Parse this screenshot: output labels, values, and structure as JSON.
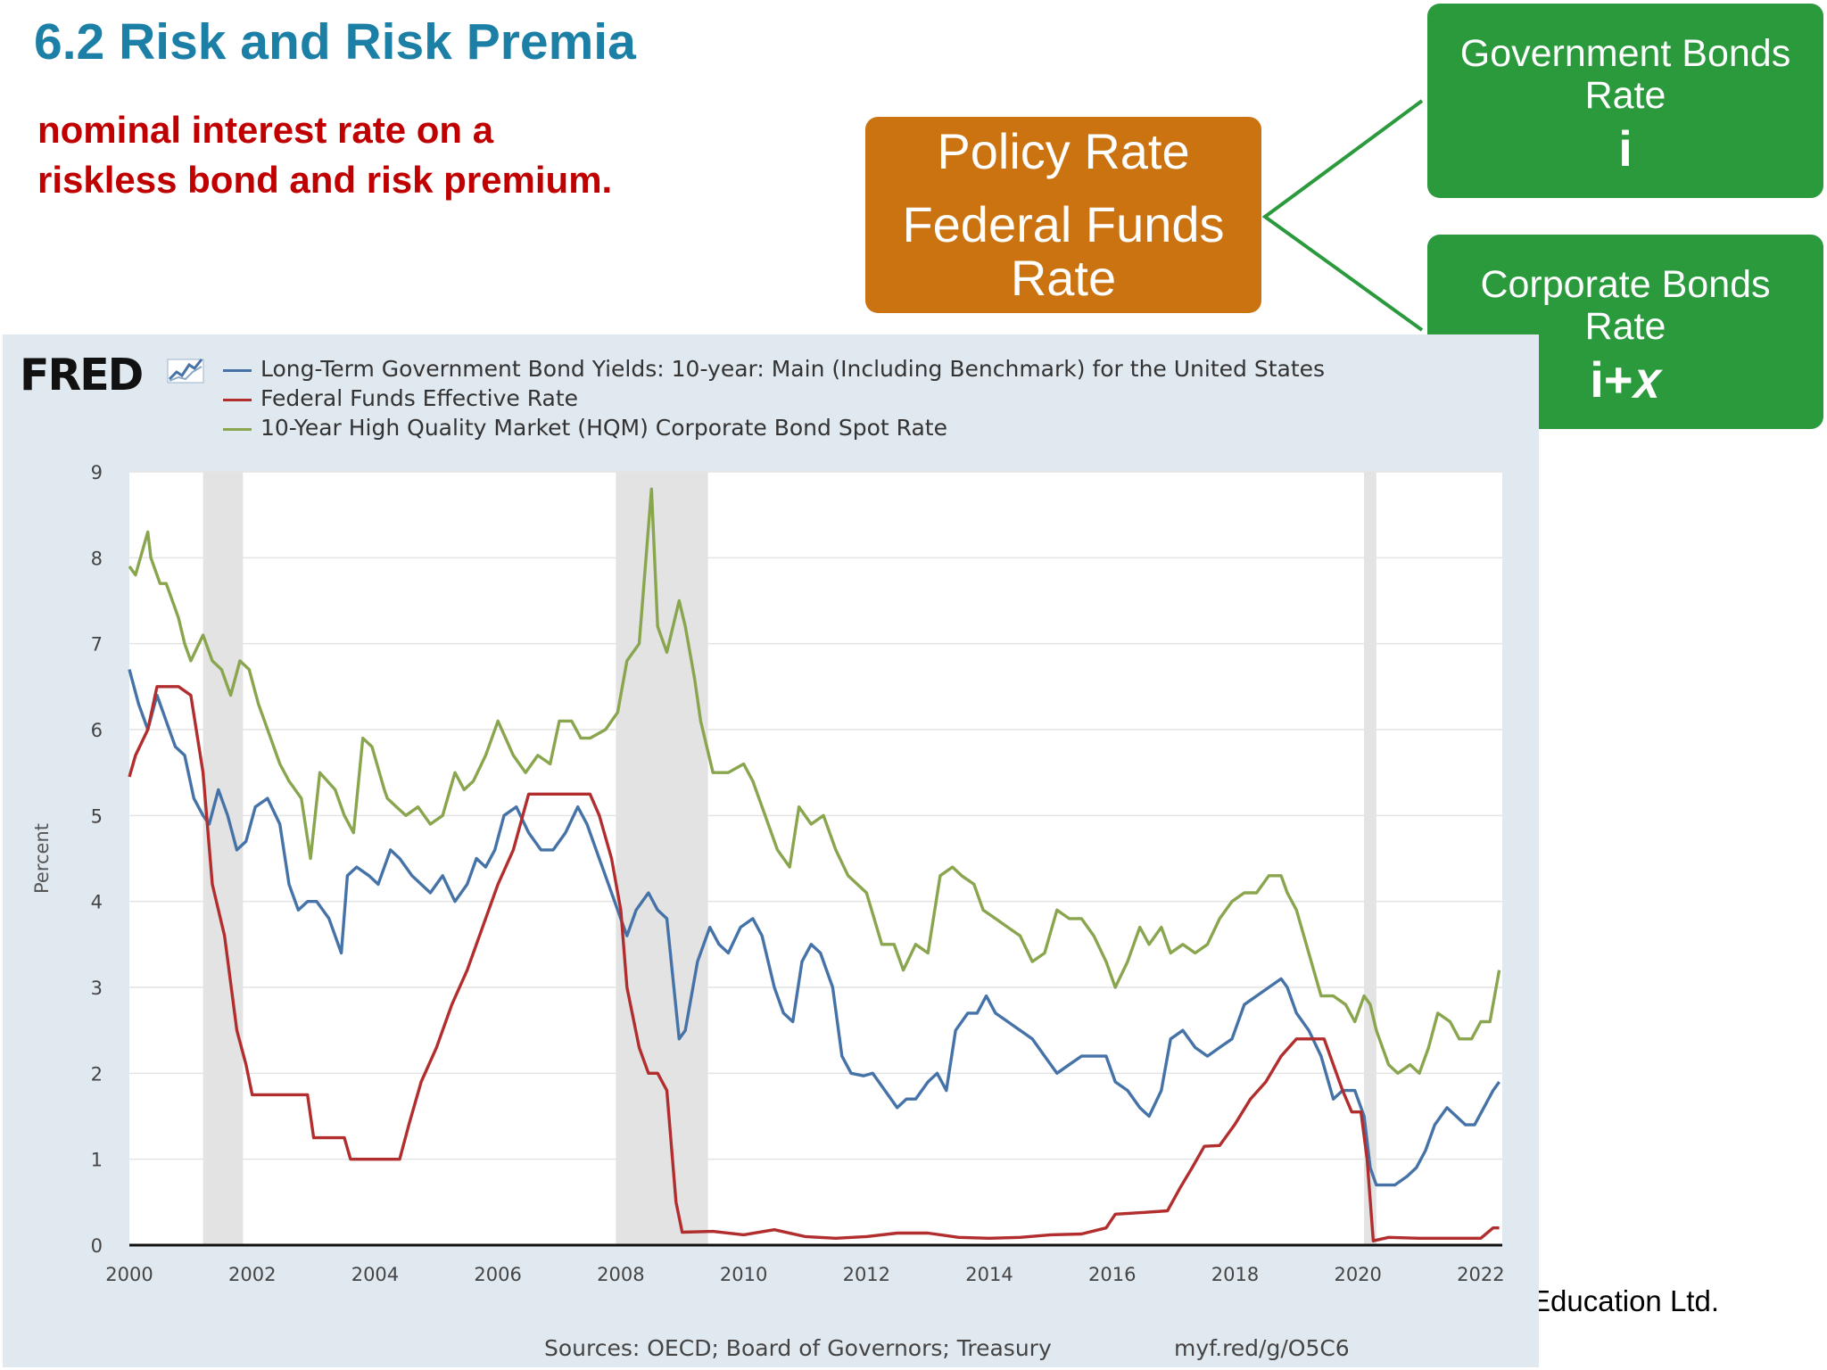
{
  "slide": {
    "title": "6.2 Risk and Risk Premia",
    "subtitle_line1": "nominal interest rate on a",
    "subtitle_line2": "riskless bond and risk premium.",
    "copyright_fragment": "Education Ltd."
  },
  "boxes": {
    "policy": {
      "line1": "Policy Rate",
      "line2": "Federal Funds",
      "line3": "Rate",
      "color": "#cc7311"
    },
    "government": {
      "line1": "Government Bonds",
      "line2": "Rate",
      "symbol": "i",
      "color": "#2a9a3d"
    },
    "corporate": {
      "line1": "Corporate Bonds",
      "line2": "Rate",
      "symbol": "i+𝑥",
      "color": "#2a9a3d"
    }
  },
  "fred": {
    "logo": "FRED",
    "sources": "Sources: OECD; Board of Governors; Treasury",
    "url": "myf.red/g/O5C6"
  },
  "chart_data": {
    "type": "line",
    "ylabel": "Percent",
    "xlabel": "",
    "xlim": [
      2000,
      2022.35
    ],
    "ylim": [
      0,
      9
    ],
    "x_ticks": [
      2000,
      2002,
      2004,
      2006,
      2008,
      2010,
      2012,
      2014,
      2016,
      2018,
      2020,
      2022
    ],
    "y_ticks": [
      0,
      1,
      2,
      3,
      4,
      5,
      6,
      7,
      8,
      9
    ],
    "grid": true,
    "legend_position": "top-left",
    "recessions": [
      [
        2001.2,
        2001.85
      ],
      [
        2007.92,
        2009.42
      ],
      [
        2020.1,
        2020.3
      ]
    ],
    "series": [
      {
        "name": "Long-Term Government Bond Yields: 10-year: Main (Including Benchmark) for the United States",
        "color": "#4572a7",
        "x": [
          2000.0,
          2000.15,
          2000.3,
          2000.45,
          2000.6,
          2000.75,
          2000.9,
          2001.05,
          2001.2,
          2001.3,
          2001.45,
          2001.6,
          2001.75,
          2001.9,
          2002.05,
          2002.25,
          2002.45,
          2002.6,
          2002.75,
          2002.9,
          2003.05,
          2003.25,
          2003.45,
          2003.55,
          2003.7,
          2003.9,
          2004.05,
          2004.25,
          2004.4,
          2004.6,
          2004.75,
          2004.9,
          2005.1,
          2005.3,
          2005.5,
          2005.65,
          2005.8,
          2005.95,
          2006.1,
          2006.3,
          2006.5,
          2006.7,
          2006.9,
          2007.1,
          2007.3,
          2007.45,
          2007.6,
          2007.8,
          2007.95,
          2008.1,
          2008.25,
          2008.45,
          2008.6,
          2008.75,
          2008.95,
          2009.05,
          2009.25,
          2009.45,
          2009.6,
          2009.75,
          2009.95,
          2010.15,
          2010.3,
          2010.5,
          2010.65,
          2010.8,
          2010.95,
          2011.1,
          2011.25,
          2011.45,
          2011.6,
          2011.75,
          2011.95,
          2012.1,
          2012.3,
          2012.5,
          2012.65,
          2012.8,
          2013.0,
          2013.15,
          2013.3,
          2013.45,
          2013.65,
          2013.8,
          2013.95,
          2014.1,
          2014.3,
          2014.5,
          2014.7,
          2014.9,
          2015.1,
          2015.3,
          2015.5,
          2015.7,
          2015.9,
          2016.05,
          2016.25,
          2016.45,
          2016.6,
          2016.8,
          2016.95,
          2017.15,
          2017.35,
          2017.55,
          2017.75,
          2017.95,
          2018.15,
          2018.35,
          2018.55,
          2018.75,
          2018.85,
          2019.0,
          2019.2,
          2019.4,
          2019.6,
          2019.75,
          2019.95,
          2020.1,
          2020.2,
          2020.3,
          2020.45,
          2020.6,
          2020.8,
          2020.95,
          2021.1,
          2021.25,
          2021.45,
          2021.6,
          2021.75,
          2021.9,
          2022.05,
          2022.2,
          2022.3
        ],
        "values": [
          6.7,
          6.3,
          6.0,
          6.4,
          6.1,
          5.8,
          5.7,
          5.2,
          5.0,
          4.9,
          5.3,
          5.0,
          4.6,
          4.7,
          5.1,
          5.2,
          4.9,
          4.2,
          3.9,
          4.0,
          4.0,
          3.8,
          3.4,
          4.3,
          4.4,
          4.3,
          4.2,
          4.6,
          4.5,
          4.3,
          4.2,
          4.1,
          4.3,
          4.0,
          4.2,
          4.5,
          4.4,
          4.6,
          5.0,
          5.1,
          4.8,
          4.6,
          4.6,
          4.8,
          5.1,
          4.9,
          4.6,
          4.2,
          3.9,
          3.6,
          3.9,
          4.1,
          3.9,
          3.8,
          2.4,
          2.5,
          3.3,
          3.7,
          3.5,
          3.4,
          3.7,
          3.8,
          3.6,
          3.0,
          2.7,
          2.6,
          3.3,
          3.5,
          3.4,
          3.0,
          2.2,
          2.0,
          1.97,
          2.0,
          1.8,
          1.6,
          1.7,
          1.7,
          1.9,
          2.0,
          1.8,
          2.5,
          2.7,
          2.7,
          2.9,
          2.7,
          2.6,
          2.5,
          2.4,
          2.2,
          2.0,
          2.1,
          2.2,
          2.2,
          2.2,
          1.9,
          1.8,
          1.6,
          1.5,
          1.8,
          2.4,
          2.5,
          2.3,
          2.2,
          2.3,
          2.4,
          2.8,
          2.9,
          3.0,
          3.1,
          3.0,
          2.7,
          2.5,
          2.2,
          1.7,
          1.8,
          1.8,
          1.5,
          0.9,
          0.7,
          0.7,
          0.7,
          0.8,
          0.9,
          1.1,
          1.4,
          1.6,
          1.5,
          1.4,
          1.4,
          1.6,
          1.8,
          1.9
        ]
      },
      {
        "name": "Federal Funds Effective Rate",
        "color": "#b22d2d",
        "x": [
          2000.0,
          2000.1,
          2000.3,
          2000.45,
          2000.6,
          2000.8,
          2001.0,
          2001.2,
          2001.35,
          2001.55,
          2001.75,
          2001.9,
          2002.0,
          2002.5,
          2002.9,
          2003.0,
          2003.5,
          2003.6,
          2004.0,
          2004.4,
          2004.55,
          2004.75,
          2005.0,
          2005.25,
          2005.5,
          2005.75,
          2006.0,
          2006.25,
          2006.5,
          2007.0,
          2007.5,
          2007.65,
          2007.85,
          2008.0,
          2008.1,
          2008.3,
          2008.45,
          2008.6,
          2008.75,
          2008.9,
          2009.0,
          2009.5,
          2010.0,
          2010.5,
          2011.0,
          2011.5,
          2012.0,
          2012.5,
          2013.0,
          2013.5,
          2014.0,
          2014.5,
          2015.0,
          2015.5,
          2015.9,
          2016.05,
          2016.5,
          2016.9,
          2017.1,
          2017.3,
          2017.5,
          2017.75,
          2018.0,
          2018.25,
          2018.5,
          2018.75,
          2019.0,
          2019.45,
          2019.6,
          2019.75,
          2019.9,
          2020.05,
          2020.15,
          2020.25,
          2020.5,
          2021.0,
          2021.5,
          2022.0,
          2022.2,
          2022.3
        ],
        "values": [
          5.45,
          5.7,
          6.0,
          6.5,
          6.5,
          6.5,
          6.4,
          5.5,
          4.2,
          3.6,
          2.5,
          2.1,
          1.75,
          1.75,
          1.75,
          1.25,
          1.25,
          1.0,
          1.0,
          1.0,
          1.4,
          1.9,
          2.3,
          2.8,
          3.2,
          3.7,
          4.2,
          4.6,
          5.25,
          5.25,
          5.25,
          5.0,
          4.5,
          3.9,
          3.0,
          2.3,
          2.0,
          2.0,
          1.8,
          0.5,
          0.15,
          0.16,
          0.12,
          0.18,
          0.1,
          0.08,
          0.1,
          0.14,
          0.14,
          0.09,
          0.08,
          0.09,
          0.12,
          0.13,
          0.2,
          0.36,
          0.38,
          0.4,
          0.66,
          0.9,
          1.15,
          1.16,
          1.41,
          1.7,
          1.9,
          2.2,
          2.4,
          2.4,
          2.1,
          1.8,
          1.55,
          1.55,
          1.0,
          0.05,
          0.09,
          0.08,
          0.08,
          0.08,
          0.2,
          0.2
        ]
      },
      {
        "name": "10-Year High Quality Market (HQM) Corporate Bond Spot Rate",
        "color": "#89a54e",
        "x": [
          2000.0,
          2000.1,
          2000.3,
          2000.35,
          2000.5,
          2000.6,
          2000.8,
          2000.9,
          2001.0,
          2001.2,
          2001.35,
          2001.5,
          2001.65,
          2001.8,
          2001.95,
          2002.1,
          2002.3,
          2002.45,
          2002.6,
          2002.8,
          2002.95,
          2003.1,
          2003.35,
          2003.5,
          2003.65,
          2003.8,
          2003.95,
          2004.15,
          2004.2,
          2004.35,
          2004.5,
          2004.7,
          2004.9,
          2005.1,
          2005.3,
          2005.45,
          2005.6,
          2005.8,
          2006.0,
          2006.25,
          2006.45,
          2006.65,
          2006.85,
          2007.0,
          2007.2,
          2007.35,
          2007.5,
          2007.75,
          2007.95,
          2008.1,
          2008.3,
          2008.5,
          2008.6,
          2008.75,
          2008.95,
          2009.05,
          2009.2,
          2009.3,
          2009.5,
          2009.75,
          2010.0,
          2010.15,
          2010.35,
          2010.55,
          2010.75,
          2010.9,
          2011.1,
          2011.3,
          2011.5,
          2011.7,
          2011.85,
          2012.0,
          2012.25,
          2012.45,
          2012.6,
          2012.8,
          2013.0,
          2013.2,
          2013.4,
          2013.55,
          2013.75,
          2013.9,
          2014.1,
          2014.3,
          2014.5,
          2014.7,
          2014.9,
          2015.1,
          2015.3,
          2015.5,
          2015.7,
          2015.9,
          2016.05,
          2016.25,
          2016.45,
          2016.6,
          2016.8,
          2016.95,
          2017.15,
          2017.35,
          2017.55,
          2017.75,
          2017.95,
          2018.15,
          2018.35,
          2018.55,
          2018.75,
          2018.85,
          2019.0,
          2019.2,
          2019.4,
          2019.6,
          2019.8,
          2019.95,
          2020.1,
          2020.2,
          2020.3,
          2020.5,
          2020.65,
          2020.85,
          2021.0,
          2021.15,
          2021.3,
          2021.5,
          2021.65,
          2021.85,
          2022.0,
          2022.15,
          2022.3
        ],
        "values": [
          7.9,
          7.8,
          8.3,
          8.0,
          7.7,
          7.7,
          7.3,
          7.0,
          6.8,
          7.1,
          6.8,
          6.7,
          6.4,
          6.8,
          6.7,
          6.3,
          5.9,
          5.6,
          5.4,
          5.2,
          4.5,
          5.5,
          5.3,
          5.0,
          4.8,
          5.9,
          5.8,
          5.3,
          5.2,
          5.1,
          5.0,
          5.1,
          4.9,
          5.0,
          5.5,
          5.3,
          5.4,
          5.7,
          6.1,
          5.7,
          5.5,
          5.7,
          5.6,
          6.1,
          6.1,
          5.9,
          5.9,
          6.0,
          6.2,
          6.8,
          7.0,
          8.8,
          7.2,
          6.9,
          7.5,
          7.2,
          6.6,
          6.1,
          5.5,
          5.5,
          5.6,
          5.4,
          5.0,
          4.6,
          4.4,
          5.1,
          4.9,
          5.0,
          4.6,
          4.3,
          4.2,
          4.1,
          3.5,
          3.5,
          3.2,
          3.5,
          3.4,
          4.3,
          4.4,
          4.3,
          4.2,
          3.9,
          3.8,
          3.7,
          3.6,
          3.3,
          3.4,
          3.9,
          3.8,
          3.8,
          3.6,
          3.3,
          3.0,
          3.3,
          3.7,
          3.5,
          3.7,
          3.4,
          3.5,
          3.4,
          3.5,
          3.8,
          4.0,
          4.1,
          4.1,
          4.3,
          4.3,
          4.1,
          3.9,
          3.4,
          2.9,
          2.9,
          2.8,
          2.6,
          2.9,
          2.8,
          2.5,
          2.1,
          2.0,
          2.1,
          2.0,
          2.3,
          2.7,
          2.6,
          2.4,
          2.4,
          2.6,
          2.6,
          3.2
        ]
      }
    ]
  }
}
